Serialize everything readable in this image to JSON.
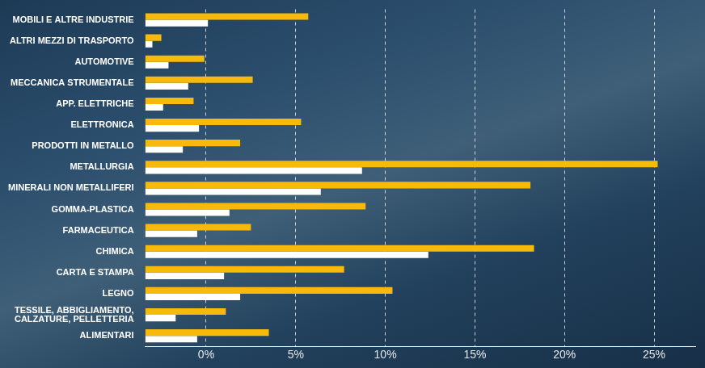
{
  "chart_data": {
    "type": "bar",
    "orientation": "horizontal",
    "categories": [
      "MOBILI E ALTRE INDUSTRIE",
      "ALTRI MEZZI DI TRASPORTO",
      "AUTOMOTIVE",
      "MECCANICA STRUMENTALE",
      "APP. ELETTRICHE",
      "ELETTRONICA",
      "PRODOTTI IN METALLO",
      "METALLURGIA",
      "MINERALI NON METALLIFERI",
      "GOMMA-PLASTICA",
      "FARMACEUTICA",
      "CHIMICA",
      "CARTA E STAMPA",
      "LEGNO",
      "TESSILE, ABBIGLIAMENTO, CALZATURE, PELLETTERIA",
      "ALIMENTARI"
    ],
    "series": [
      {
        "color": "#f7b90c",
        "values": [
          5.7,
          -2.5,
          -0.1,
          2.6,
          -0.7,
          5.3,
          1.9,
          25.2,
          18.1,
          8.9,
          2.5,
          18.3,
          7.7,
          10.4,
          1.1,
          3.5
        ]
      },
      {
        "color": "#ffffff",
        "values": [
          0.1,
          -3.0,
          -2.1,
          -1.0,
          -2.4,
          -0.4,
          -1.3,
          8.7,
          6.4,
          1.3,
          -0.5,
          12.4,
          1.0,
          1.9,
          -1.7,
          -0.5
        ]
      }
    ],
    "xlim": [
      -3.4,
      27.3
    ],
    "xticks": [
      {
        "value": 0,
        "label": "0%"
      },
      {
        "value": 5,
        "label": "5%"
      },
      {
        "value": 10,
        "label": "10%"
      },
      {
        "value": 15,
        "label": "15%"
      },
      {
        "value": 20,
        "label": "20%"
      },
      {
        "value": 25,
        "label": "25%"
      }
    ],
    "grid": true
  }
}
